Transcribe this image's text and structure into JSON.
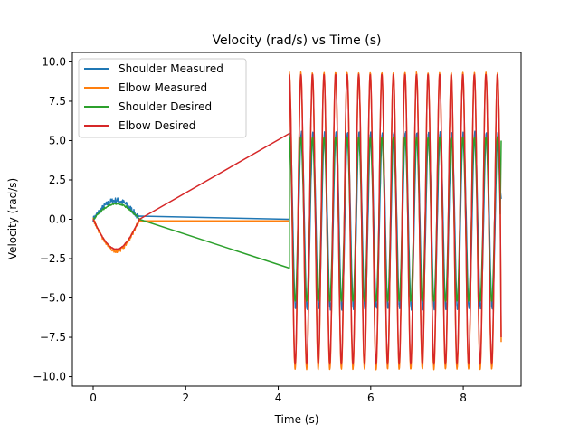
{
  "chart_data": {
    "type": "line",
    "title": "Velocity (rad/s) vs Time (s)",
    "xlabel": "Time (s)",
    "ylabel": "Velocity (rad/s)",
    "xlim": [
      -0.45,
      9.25
    ],
    "ylim": [
      -10.6,
      10.6
    ],
    "xticks": [
      0,
      2,
      4,
      6,
      8
    ],
    "yticks": [
      -10.0,
      -7.5,
      -5.0,
      -2.5,
      0.0,
      2.5,
      5.0,
      7.5,
      10.0
    ],
    "xtick_labels": [
      "0",
      "2",
      "4",
      "6",
      "8"
    ],
    "ytick_labels": [
      "−10.0",
      "−7.5",
      "−5.0",
      "−2.5",
      "0.0",
      "2.5",
      "5.0",
      "7.5",
      "10.0"
    ],
    "grid": false,
    "legend_position": "upper-left",
    "oscillation": {
      "period_s": 0.25,
      "segment_1": [
        0,
        1.0
      ],
      "segment_2": [
        4.24,
        8.8
      ]
    },
    "series": [
      {
        "name": "Shoulder Measured",
        "color": "#1f77b4",
        "segment_1_peak": 1.2,
        "segment_1_end": 0.2,
        "segment_2_start": 0.0,
        "segment_2_amplitude": [
          -6.0,
          5.8
        ],
        "segment_2_phase": "in phase with Elbow"
      },
      {
        "name": "Elbow Measured",
        "color": "#ff7f0e",
        "segment_1_peak": -2.0,
        "segment_1_end": -0.1,
        "segment_2_start": -0.1,
        "segment_2_amplitude": [
          -9.7,
          9.5
        ]
      },
      {
        "name": "Shoulder Desired",
        "color": "#2ca02c",
        "segment_1_peak": 1.0,
        "segment_1_end": 0.0,
        "segment_2_start": -3.1,
        "segment_2_amplitude": [
          -5.2,
          5.2
        ],
        "segment_2_phase": "lagging Elbow"
      },
      {
        "name": "Elbow Desired",
        "color": "#d62728",
        "segment_1_peak": -1.9,
        "segment_1_end": 0.0,
        "segment_2_start": 5.45,
        "segment_2_amplitude": [
          -9.2,
          9.2
        ]
      }
    ]
  }
}
